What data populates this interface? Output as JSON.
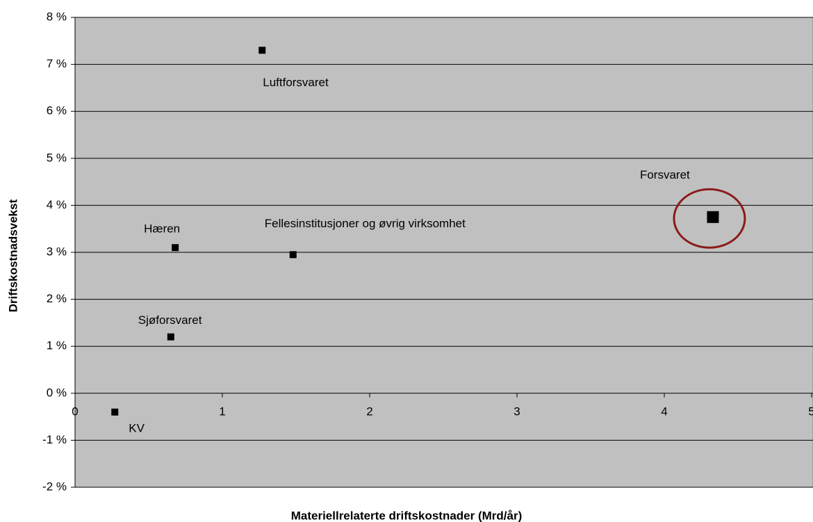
{
  "chart_data": {
    "type": "scatter",
    "x_label": "Materiellrelaterte driftskostnader (Mrd/år)",
    "y_label": "Driftskostnadsvekst",
    "point_labels": [
      "KV",
      "Sjøforsvaret",
      "Hæren",
      "Luftforsvaret",
      "Fellesinstitusjoner og øvrig virksomhet",
      "Forsvaret"
    ],
    "x": [
      0.27,
      0.65,
      0.68,
      1.27,
      1.48,
      4.33
    ],
    "values": [
      -0.4,
      1.2,
      3.1,
      7.3,
      2.95,
      3.75
    ],
    "marker_sizes": [
      10,
      10,
      10,
      10,
      10,
      17
    ],
    "color": "#000000",
    "xlim": [
      0,
      5
    ],
    "xticks": [
      0,
      1,
      2,
      3,
      4,
      5
    ],
    "ylim": [
      -2,
      8
    ],
    "yticks": [
      {
        "value": -2,
        "label": "-2 %"
      },
      {
        "value": -1,
        "label": "-1 %"
      },
      {
        "value": 0,
        "label": "0 %"
      },
      {
        "value": 1,
        "label": "1 %"
      },
      {
        "value": 2,
        "label": "2 %"
      },
      {
        "value": 3,
        "label": "3 %"
      },
      {
        "value": 4,
        "label": "4 %"
      },
      {
        "value": 5,
        "label": "5 %"
      },
      {
        "value": 6,
        "label": "6 %"
      },
      {
        "value": 7,
        "label": "7 %"
      },
      {
        "value": 8,
        "label": "8 %"
      }
    ],
    "grid": true
  }
}
